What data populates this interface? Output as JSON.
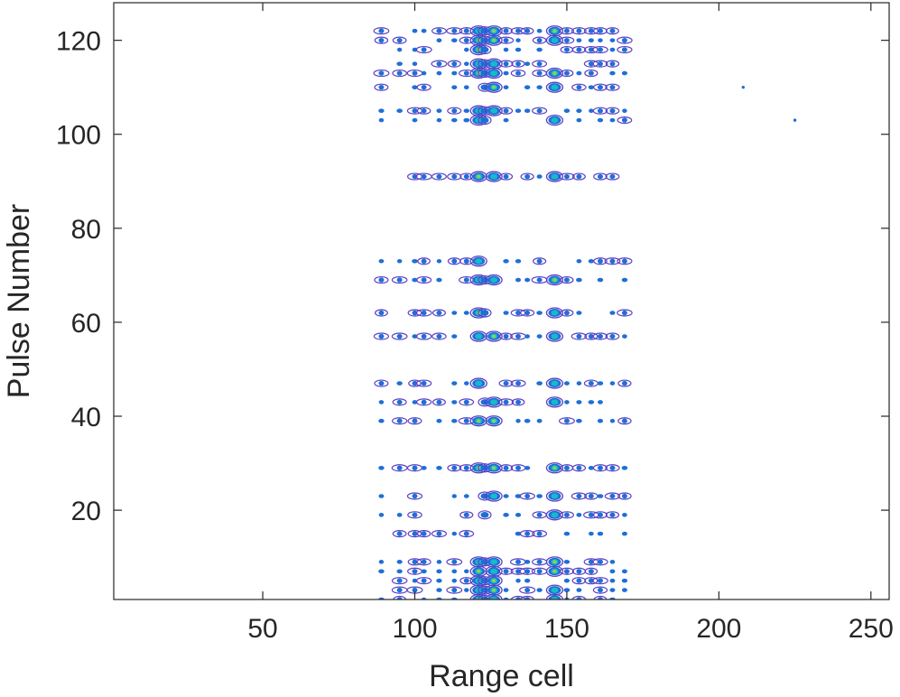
{
  "chart_data": {
    "type": "contour",
    "xlabel": "Range cell",
    "ylabel": "Pulse Number",
    "xlim": [
      1,
      256
    ],
    "ylim": [
      1,
      128
    ],
    "xticks": [
      50,
      100,
      150,
      200,
      250
    ],
    "yticks": [
      20,
      40,
      60,
      80,
      100,
      120
    ],
    "grid": false,
    "colors": {
      "contour_outer": "#5b3fc4",
      "contour_mid": "#1f6fd6",
      "contour_inner": "#18b9c9",
      "contour_peak": "#8fd14f",
      "axis": "#262626"
    },
    "pulse_rows": [
      1,
      3,
      5,
      7,
      9,
      15,
      19,
      23,
      29,
      39,
      43,
      47,
      57,
      62,
      69,
      73,
      91,
      103,
      105,
      110,
      113,
      115,
      118,
      120,
      122
    ],
    "range_cells": [
      89,
      95,
      100,
      103,
      108,
      113,
      117,
      121,
      123,
      126,
      130,
      134,
      137,
      141,
      146,
      150,
      154,
      158,
      161,
      165,
      169
    ],
    "strong_cells": [
      121,
      126,
      146
    ],
    "isolated_points": [
      [
        208,
        110
      ],
      [
        225,
        103
      ]
    ]
  }
}
